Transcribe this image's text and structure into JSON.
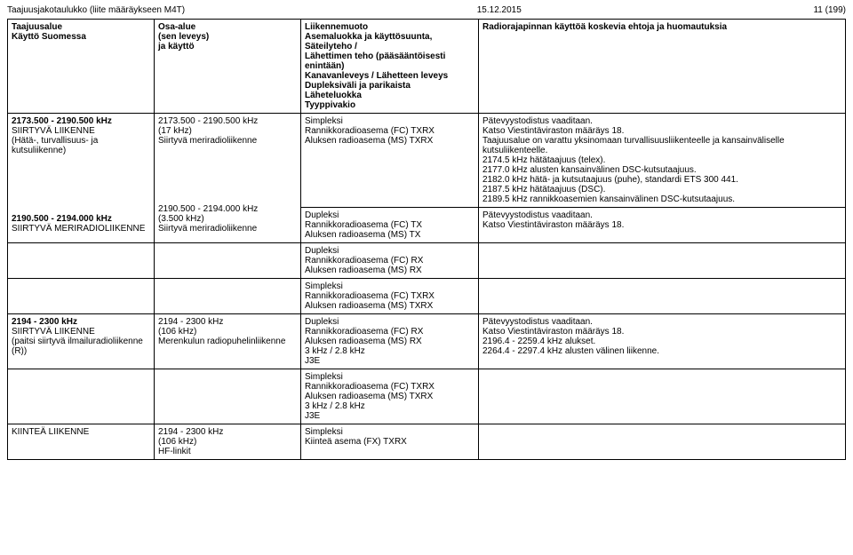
{
  "header": {
    "left": "Taajuusjakotaulukko (liite määräykseen M4T)",
    "center": "15.12.2015",
    "right": "11 (199)"
  },
  "head_row": {
    "c1a": "Taajuusalue",
    "c1b": "Käyttö Suomessa",
    "c2a": "Osa-alue",
    "c2b": "(sen leveys)",
    "c2c": "ja käyttö",
    "c3a": "Liikennemuoto",
    "c3b": "Asemaluokka ja käyttösuunta, Säteilyteho /",
    "c3c": "Lähettimen teho (pääsääntöisesti enintään)",
    "c3d": "Kanavanleveys / Lähetteen leveys",
    "c3e": "Dupleksiväli ja parikaista",
    "c3f": "Läheteluokka",
    "c3g": "Tyyppivakio",
    "c4": "Radiorajapinnan käyttöä koskevia ehtoja ja huomautuksia"
  },
  "row1": {
    "c1a": "2173.500 - 2190.500 kHz",
    "c1b": "SIIRTYVÄ LIIKENNE",
    "c1c": "(Hätä-, turvallisuus- ja kutsuliikenne)",
    "c2a": "2173.500 - 2190.500 kHz",
    "c2b": "(17 kHz)",
    "c2c": "Siirtyvä meriradioliikenne",
    "c3a": "Simpleksi",
    "c3b": "Rannikkoradioasema (FC) TXRX",
    "c3c": "Aluksen radioasema (MS) TXRX",
    "c4a": "Pätevyystodistus vaaditaan.",
    "c4b": "Katso Viestintäviraston määräys 18.",
    "c4c": "Taajuusalue on varattu yksinomaan turvallisuusliikenteelle ja kansainväliselle kutsuliikenteelle.",
    "c4d": "2174.5 kHz hätätaajuus (telex).",
    "c4e": "2177.0 kHz alusten kansainvälinen DSC-kutsutaajuus.",
    "c4f": "2182.0 kHz hätä- ja kutsutaajuus (puhe), standardi ETS 300 441.",
    "c4g": "2187.5 kHz hätätaajuus (DSC).",
    "c4h": "2189.5 kHz rannikkoasemien kansainvälinen DSC-kutsutaajuus."
  },
  "row2": {
    "c1a": "2190.500 - 2194.000 kHz",
    "c1b": "SIIRTYVÄ MERIRADIOLIIKENNE",
    "c2a": "2190.500 - 2194.000 kHz",
    "c2b": "(3.500 kHz)",
    "c2c": "Siirtyvä meriradioliikenne",
    "c3a": "Dupleksi",
    "c3b": "Rannikkoradioasema (FC) TX",
    "c3c": "Aluksen radioasema (MS) TX",
    "c4a": "Pätevyystodistus vaaditaan.",
    "c4b": "Katso Viestintäviraston määräys 18."
  },
  "row3": {
    "c3a": "Dupleksi",
    "c3b": "Rannikkoradioasema (FC) RX",
    "c3c": "Aluksen radioasema (MS) RX"
  },
  "row4": {
    "c3a": "Simpleksi",
    "c3b": "Rannikkoradioasema (FC) TXRX",
    "c3c": "Aluksen radioasema (MS) TXRX"
  },
  "row5": {
    "c1a": "2194 - 2300 kHz",
    "c1b": "SIIRTYVÄ LIIKENNE",
    "c1c": "(paitsi siirtyvä ilmailuradioliikenne (R))",
    "c2a": "2194 - 2300 kHz",
    "c2b": "(106 kHz)",
    "c2c": "Merenkulun radiopuhelinliikenne",
    "c3a": "Dupleksi",
    "c3b": "Rannikkoradioasema (FC) RX",
    "c3c": "Aluksen radioasema (MS) RX",
    "c3d": "3 kHz / 2.8 kHz",
    "c3e": "J3E",
    "c4a": "Pätevyystodistus vaaditaan.",
    "c4b": "Katso Viestintäviraston määräys 18.",
    "c4c": "2196.4 - 2259.4 kHz alukset.",
    "c4d": "2264.4 - 2297.4 kHz alusten välinen liikenne."
  },
  "row6": {
    "c3a": "Simpleksi",
    "c3b": "Rannikkoradioasema (FC) TXRX",
    "c3c": "Aluksen radioasema (MS) TXRX",
    "c3d": "3 kHz / 2.8 kHz",
    "c3e": "J3E"
  },
  "row7": {
    "c1a": "KIINTEÄ LIIKENNE",
    "c2a": "2194 - 2300 kHz",
    "c2b": "(106 kHz)",
    "c2c": "HF-linkit",
    "c3a": "Simpleksi",
    "c3b": "Kiinteä asema (FX) TXRX"
  }
}
